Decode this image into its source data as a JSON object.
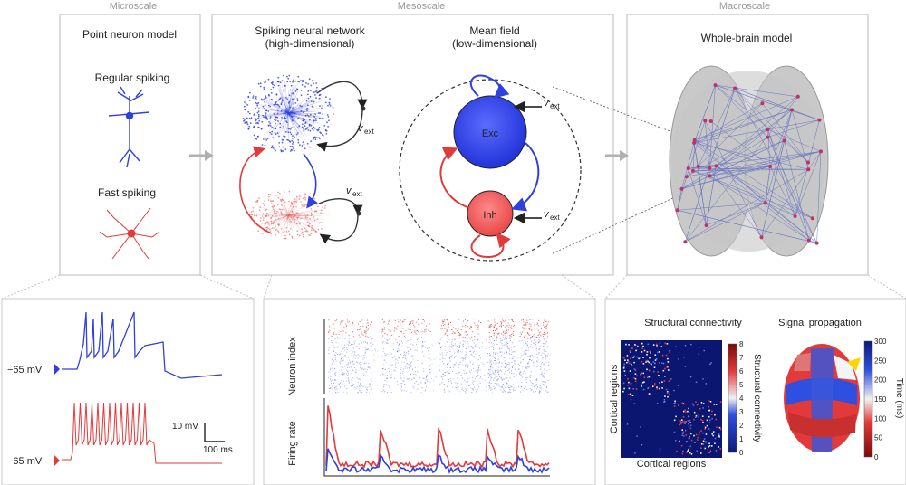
{
  "scales": {
    "micro": "Microscale",
    "meso": "Mesoscale",
    "macro": "Macroscale"
  },
  "panels": {
    "point_neuron": {
      "title": "Point neuron model",
      "regular": "Regular spiking",
      "fast": "Fast spiking"
    },
    "snn": {
      "title1": "Spiking neural network",
      "title2": "(high-dimensional)",
      "vext": "v",
      "vext_sub": "ext"
    },
    "mean_field": {
      "title1": "Mean field",
      "title2": "(low-dimensional)",
      "exc": "Exc",
      "inh": "Inh",
      "vext": "v",
      "vext_sub": "ext"
    },
    "whole_brain": {
      "title": "Whole-brain model"
    }
  },
  "traces": {
    "voltage_label_top": "−65 mV",
    "voltage_label_bottom": "−65 mV",
    "scale_v": "10 mV",
    "scale_t": "100 ms"
  },
  "raster": {
    "ylabel_top": "Neuron index",
    "ylabel_bottom": "Firing rate"
  },
  "connectivity": {
    "title": "Structural connectivity",
    "xlabel": "Cortical regions",
    "ylabel": "Cortical regions",
    "cbar_label": "Structural connectivity",
    "cbar_ticks": [
      "0",
      "1",
      "2",
      "3",
      "4",
      "5",
      "6",
      "7",
      "8"
    ]
  },
  "propagation": {
    "title": "Signal propagation",
    "cbar_label": "Time (ms)",
    "cbar_ticks": [
      "0",
      "50",
      "100",
      "150",
      "200",
      "250",
      "300"
    ]
  },
  "colors": {
    "exc": "#2f3fe0",
    "inh": "#e23a3a",
    "panel_border": "#b8b8b8",
    "arrow_gray": "#b0b0b0"
  }
}
